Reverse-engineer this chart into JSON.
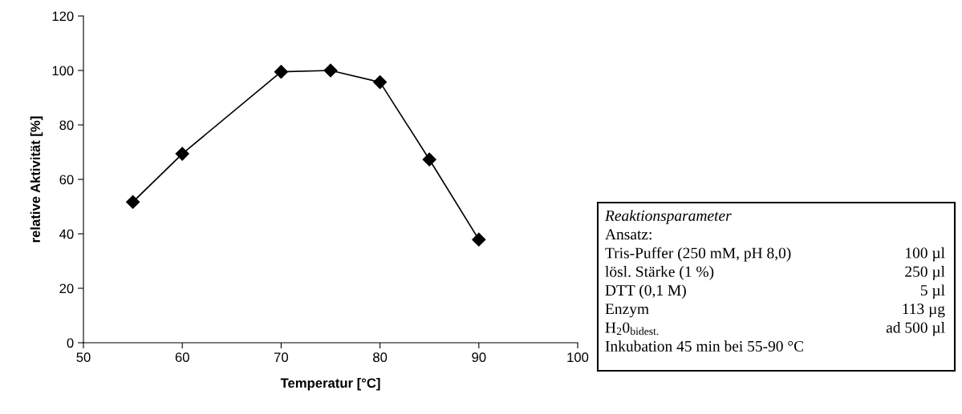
{
  "chart_data": {
    "type": "line",
    "xlabel": "Temperatur [°C]",
    "ylabel": "relative Aktivität [%]",
    "x": [
      55,
      60,
      70,
      75,
      80,
      85,
      90
    ],
    "series": [
      {
        "color": "#000000",
        "values": [
          51.7,
          69.4,
          99.5,
          100,
          95.7,
          67.3,
          37.9
        ]
      }
    ],
    "xlim": [
      50,
      100
    ],
    "xticks": [
      50,
      60,
      70,
      80,
      90,
      100
    ],
    "ylim": [
      0,
      120
    ],
    "yticks": [
      0,
      20,
      40,
      60,
      80,
      100,
      120
    ],
    "marker": "diamond",
    "line_style": "solid",
    "grid": false,
    "legend": false,
    "annotations": [
      "Reaktionsparameter",
      "Ansatz:",
      "Tris-Puffer (250 mM, pH 8,0)\t100 µl",
      "lösl. Stärke (1 %)\t250 µl",
      "DTT (0,1 M)\t5 µl",
      "Enzym\t113 µg",
      "H$_{2}$0$_{bidest.}$\tad 500 µl",
      "Inkubation 45 min bei 55-90 °C"
    ]
  }
}
